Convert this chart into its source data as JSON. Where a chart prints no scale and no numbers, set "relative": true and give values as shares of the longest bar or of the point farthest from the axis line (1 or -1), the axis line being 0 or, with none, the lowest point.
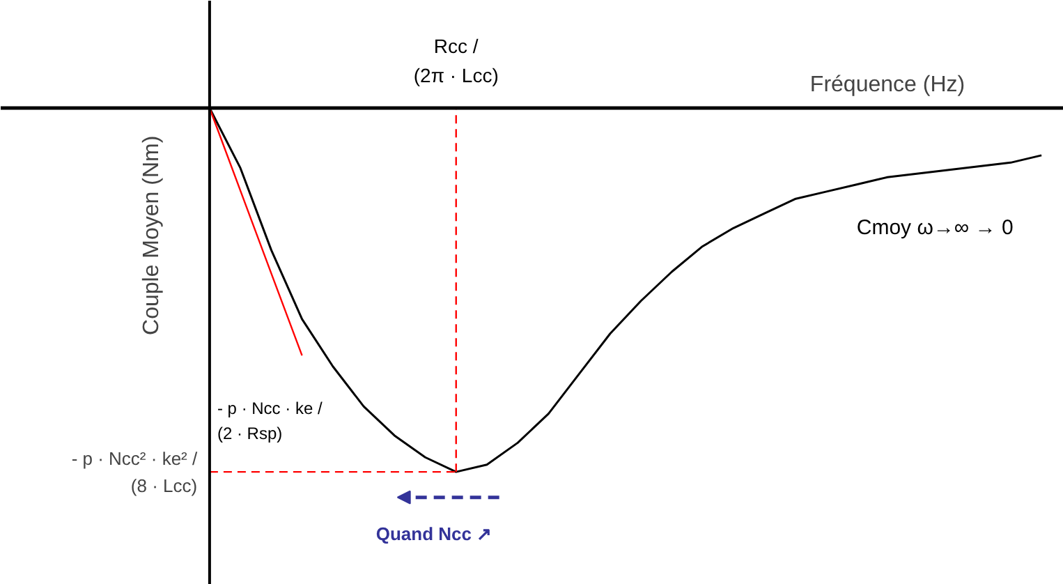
{
  "chart_data": {
    "type": "line",
    "relative": true,
    "xlabel": "Fréquence (Hz)",
    "ylabel": "Couple Moyen (Nm)",
    "categories": [
      null,
      null,
      null,
      null,
      null,
      null,
      null,
      null,
      null,
      null,
      null,
      null,
      null,
      null,
      null,
      null,
      null,
      null,
      null,
      null,
      null,
      null,
      null,
      null,
      null,
      null,
      null,
      null
    ],
    "series": [
      {
        "color": "#000000",
        "values": [
          0,
          -0.165,
          -0.39,
          -0.58,
          -0.71,
          -0.82,
          -0.9,
          -0.96,
          -1,
          -0.98,
          -0.92,
          -0.84,
          -0.73,
          -0.62,
          -0.53,
          -0.45,
          -0.38,
          -0.33,
          -0.29,
          -0.25,
          -0.23,
          -0.21,
          -0.19,
          -0.18,
          -0.17,
          -0.16,
          -0.15,
          -0.13
        ]
      },
      {
        "color": "#ff0000",
        "values": [
          0,
          -0.227,
          -0.454,
          -0.68,
          null,
          null,
          null,
          null,
          null,
          null,
          null,
          null,
          null,
          null,
          null,
          null,
          null,
          null,
          null,
          null,
          null,
          null,
          null,
          null,
          null,
          null,
          null,
          null
        ]
      }
    ],
    "ref_lines": [
      {
        "axis": "y",
        "value": -1,
        "label": "- p · Ncc² · ke² / (8 · Lcc)",
        "color": "#ff0000",
        "line_style": "dashed"
      }
    ],
    "annotations": [
      "Rcc / (2π · Lcc)",
      "Cmoy ω→∞ → 0",
      "- p · Ncc · ke / (2 · Rsp)",
      "Quand Ncc ↗"
    ],
    "line_style": "solid"
  }
}
